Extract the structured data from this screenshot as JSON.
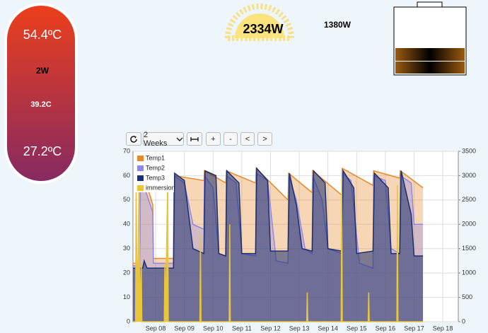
{
  "gauges": {
    "tank_top": "54.4ºC",
    "tank_power": "2W",
    "tank_mid": "39.2C",
    "tank_bottom": "27.2ºC",
    "solar": "2334W",
    "load": "1380W"
  },
  "toolbar": {
    "range": "2 Weeks",
    "buttons": [
      "+",
      "-",
      "<",
      ">"
    ]
  },
  "chart_data": {
    "type": "area",
    "legend": "top-left",
    "grid": true,
    "xlim": [
      7.21,
      18.54
    ],
    "ylim": [
      0,
      70
    ],
    "y2lim": [
      0,
      3500
    ],
    "xticks": [
      {
        "value": 8,
        "label": "Sep 08"
      },
      {
        "value": 9,
        "label": "Sep 09"
      },
      {
        "value": 10,
        "label": "Sep 10"
      },
      {
        "value": 11,
        "label": "Sep 11"
      },
      {
        "value": 12,
        "label": "Sep 12"
      },
      {
        "value": 13,
        "label": "Sep 13"
      },
      {
        "value": 14,
        "label": "Sep 14"
      },
      {
        "value": 15,
        "label": "Sep 15"
      },
      {
        "value": 16,
        "label": "Sep 16"
      },
      {
        "value": 17,
        "label": "Sep 17"
      },
      {
        "value": 18,
        "label": "Sep 18"
      }
    ],
    "yticks": [
      0,
      10,
      20,
      30,
      40,
      50,
      60,
      70
    ],
    "y2ticks": [
      0,
      500,
      1000,
      1500,
      2000,
      2500,
      3000,
      3500
    ],
    "series": [
      {
        "name": "Temp1",
        "color": "#e8892b",
        "x": [
          7.21,
          7.45,
          7.47,
          7.6,
          7.9,
          7.92,
          8.62,
          8.64,
          9.68,
          9.7,
          10.44,
          10.46,
          11.48,
          11.5,
          12.61,
          12.63,
          13.45,
          13.47,
          14.48,
          14.5,
          15.57,
          15.59,
          16.5,
          16.52,
          17.31
        ],
        "values": [
          24,
          24,
          63,
          60,
          48,
          26,
          26,
          60,
          58,
          62,
          57,
          62,
          57,
          63,
          50,
          61,
          53,
          62,
          52,
          63,
          56,
          62,
          59,
          62,
          55
        ]
      },
      {
        "name": "Temp2",
        "color": "#8f88e8",
        "x": [
          7.21,
          7.45,
          7.47,
          7.9,
          7.92,
          8.62,
          8.64,
          9.0,
          9.3,
          9.68,
          9.7,
          10.0,
          10.2,
          10.44,
          10.46,
          10.8,
          11.0,
          11.48,
          11.5,
          11.9,
          12.2,
          12.61,
          12.63,
          12.9,
          13.2,
          13.45,
          13.47,
          13.8,
          14.0,
          14.48,
          14.5,
          14.8,
          15.1,
          15.57,
          15.59,
          16.0,
          16.2,
          16.5,
          16.52,
          16.9,
          17.0,
          17.31
        ],
        "values": [
          23,
          23,
          60,
          45,
          24,
          24,
          60,
          57,
          40,
          38,
          60,
          55,
          28,
          27,
          60,
          57,
          28,
          27,
          61,
          58,
          25,
          24,
          60,
          50,
          30,
          28,
          60,
          50,
          30,
          28,
          61,
          58,
          24,
          22,
          60,
          58,
          30,
          28,
          60,
          57,
          40,
          40
        ]
      },
      {
        "name": "Temp3",
        "color": "#1c2f6e",
        "x": [
          7.21,
          7.55,
          7.6,
          7.7,
          8.62,
          8.66,
          9.0,
          9.3,
          9.68,
          9.72,
          10.1,
          10.2,
          10.44,
          10.48,
          10.9,
          11.0,
          11.48,
          11.52,
          11.9,
          12.0,
          12.61,
          12.66,
          12.9,
          13.1,
          13.45,
          13.5,
          13.9,
          14.0,
          14.48,
          14.53,
          14.9,
          15.0,
          15.57,
          15.62,
          16.1,
          16.2,
          16.5,
          16.55,
          16.9,
          17.0,
          17.31
        ],
        "values": [
          22,
          22,
          25,
          22,
          22,
          61,
          58,
          30,
          28,
          62,
          60,
          28,
          27,
          62,
          57,
          28,
          28,
          63,
          58,
          29,
          29,
          61,
          48,
          30,
          29,
          62,
          57,
          30,
          29,
          62,
          55,
          28,
          29,
          61,
          55,
          28,
          28,
          62,
          44,
          27,
          27
        ]
      },
      {
        "name": "immersion",
        "color": "#e8c53a",
        "axis": "y2",
        "x": [
          7.21,
          7.3,
          7.32,
          7.36,
          7.42,
          7.46,
          7.5,
          7.52,
          8.3,
          8.32,
          8.34,
          8.42,
          8.44,
          9.54,
          9.56,
          9.58,
          10.56,
          10.58,
          10.6,
          13.26,
          13.28,
          13.3,
          14.46,
          14.48,
          14.5,
          15.4,
          15.42,
          15.44,
          16.4,
          16.42,
          16.44,
          17.31
        ],
        "values": [
          0,
          0,
          3000,
          0,
          3000,
          0,
          1200,
          0,
          0,
          1200,
          0,
          3000,
          0,
          0,
          1800,
          0,
          0,
          2000,
          0,
          0,
          600,
          0,
          0,
          2950,
          0,
          0,
          600,
          0,
          0,
          2800,
          0,
          0
        ]
      }
    ]
  }
}
